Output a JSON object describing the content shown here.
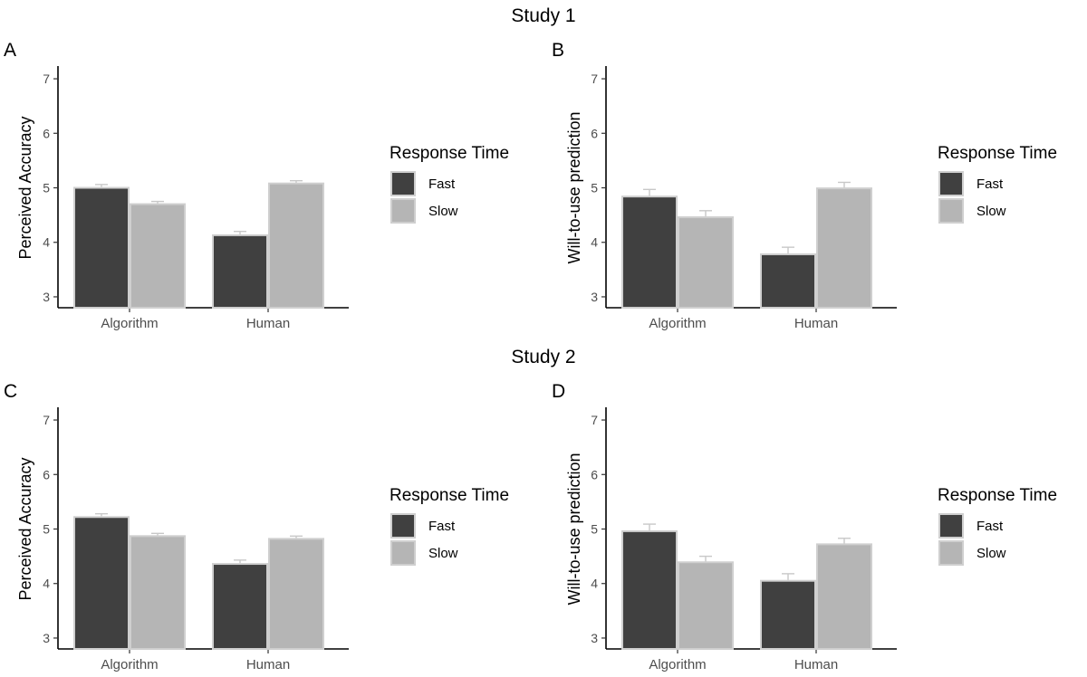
{
  "chart_data": [
    {
      "type": "bar",
      "study": "Study 1",
      "panel": "A",
      "title": "",
      "xlabel": "",
      "ylabel": "Perceived Accuracy",
      "ylim": [
        2.8,
        7.2
      ],
      "yticks": [
        "3",
        "4",
        "5",
        "6",
        "7"
      ],
      "categories": [
        "Algorithm",
        "Human"
      ],
      "legend_title": "Response Time",
      "legend_position": "right",
      "series": [
        {
          "name": "Fast",
          "color": "#404040",
          "values": [
            5.0,
            4.13
          ],
          "errors": [
            0.06,
            0.07
          ]
        },
        {
          "name": "Slow",
          "color": "#b5b5b5",
          "values": [
            4.7,
            5.08
          ],
          "errors": [
            0.05,
            0.05
          ]
        }
      ]
    },
    {
      "type": "bar",
      "study": "",
      "panel": "B",
      "title": "",
      "xlabel": "",
      "ylabel": "Will-to-use prediction",
      "ylim": [
        2.8,
        7.2
      ],
      "yticks": [
        "3",
        "4",
        "5",
        "6",
        "7"
      ],
      "categories": [
        "Algorithm",
        "Human"
      ],
      "legend_title": "Response Time",
      "legend_position": "right",
      "series": [
        {
          "name": "Fast",
          "color": "#404040",
          "values": [
            4.84,
            3.78
          ],
          "errors": [
            0.13,
            0.13
          ]
        },
        {
          "name": "Slow",
          "color": "#b5b5b5",
          "values": [
            4.46,
            4.99
          ],
          "errors": [
            0.12,
            0.11
          ]
        }
      ]
    },
    {
      "type": "bar",
      "study": "Study 2",
      "panel": "C",
      "title": "",
      "xlabel": "",
      "ylabel": "Perceived Accuracy",
      "ylim": [
        2.8,
        7.2
      ],
      "yticks": [
        "3",
        "4",
        "5",
        "6",
        "7"
      ],
      "categories": [
        "Algorithm",
        "Human"
      ],
      "legend_title": "Response Time",
      "legend_position": "right",
      "series": [
        {
          "name": "Fast",
          "color": "#404040",
          "values": [
            5.22,
            4.36
          ],
          "errors": [
            0.06,
            0.07
          ]
        },
        {
          "name": "Slow",
          "color": "#b5b5b5",
          "values": [
            4.87,
            4.82
          ],
          "errors": [
            0.05,
            0.05
          ]
        }
      ]
    },
    {
      "type": "bar",
      "study": "",
      "panel": "D",
      "title": "",
      "xlabel": "",
      "ylabel": "Will-to-use prediction",
      "ylim": [
        2.8,
        7.2
      ],
      "yticks": [
        "3",
        "4",
        "5",
        "6",
        "7"
      ],
      "categories": [
        "Algorithm",
        "Human"
      ],
      "legend_title": "Response Time",
      "legend_position": "right",
      "series": [
        {
          "name": "Fast",
          "color": "#404040",
          "values": [
            4.96,
            4.05
          ],
          "errors": [
            0.13,
            0.13
          ]
        },
        {
          "name": "Slow",
          "color": "#b5b5b5",
          "values": [
            4.39,
            4.72
          ],
          "errors": [
            0.11,
            0.11
          ]
        }
      ]
    }
  ]
}
